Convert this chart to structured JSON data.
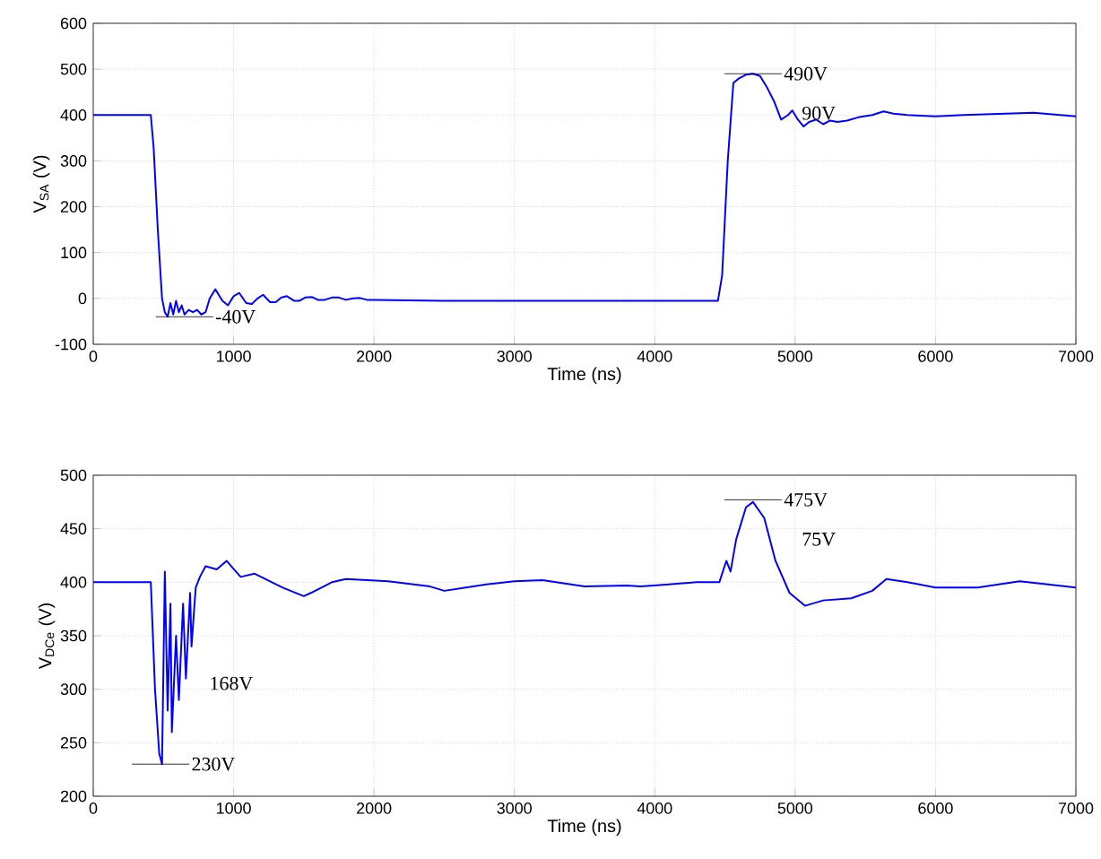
{
  "chart_data": [
    {
      "type": "line",
      "xlabel": "Time (ns)",
      "ylabel": "V$_{SA}$ (V)",
      "xlim": [
        0,
        7000
      ],
      "ylim": [
        -100,
        600
      ],
      "xticks": [
        0,
        1000,
        2000,
        3000,
        4000,
        5000,
        6000,
        7000
      ],
      "yticks": [
        -100,
        0,
        100,
        200,
        300,
        400,
        500,
        600
      ],
      "grid": true,
      "series": [
        {
          "color": "#0000ff",
          "x": [
            0,
            200,
            410,
            430,
            460,
            490,
            510,
            530,
            550,
            570,
            590,
            610,
            630,
            650,
            680,
            710,
            740,
            770,
            800,
            830,
            870,
            920,
            960,
            1000,
            1040,
            1090,
            1130,
            1170,
            1210,
            1260,
            1300,
            1340,
            1380,
            1430,
            1470,
            1510,
            1560,
            1600,
            1650,
            1700,
            1750,
            1800,
            1850,
            1900,
            1950,
            2000,
            2500,
            3000,
            3500,
            4000,
            4450,
            4480,
            4520,
            4560,
            4600,
            4650,
            4700,
            4750,
            4800,
            4850,
            4900,
            4950,
            4980,
            5020,
            5060,
            5100,
            5150,
            5200,
            5250,
            5300,
            5370,
            5450,
            5550,
            5630,
            5700,
            5800,
            6000,
            6200,
            6400,
            6700,
            7000
          ],
          "values": [
            400,
            400,
            400,
            330,
            150,
            0,
            -30,
            -40,
            -10,
            -35,
            -5,
            -30,
            -15,
            -35,
            -25,
            -30,
            -25,
            -35,
            -30,
            0,
            20,
            -5,
            -15,
            5,
            12,
            -10,
            -12,
            0,
            8,
            -8,
            -8,
            2,
            5,
            -5,
            -5,
            2,
            3,
            -3,
            -3,
            2,
            2,
            -3,
            0,
            1,
            -3,
            -3,
            -5,
            -5,
            -5,
            -5,
            -5,
            50,
            300,
            470,
            480,
            488,
            490,
            485,
            460,
            430,
            390,
            400,
            410,
            390,
            375,
            385,
            390,
            380,
            388,
            385,
            388,
            395,
            400,
            408,
            403,
            400,
            397,
            400,
            402,
            405,
            397
          ]
        }
      ],
      "annotations": [
        {
          "text": "-40V",
          "x": 650,
          "y": -40
        },
        {
          "text": "490V",
          "x": 4700,
          "y": 490
        },
        "90V"
      ]
    },
    {
      "type": "line",
      "xlabel": "Time (ns)",
      "ylabel": "V$_{DCe}$ (V)",
      "xlim": [
        0,
        7000
      ],
      "ylim": [
        200,
        500
      ],
      "xticks": [
        0,
        1000,
        2000,
        3000,
        4000,
        5000,
        6000,
        7000
      ],
      "yticks": [
        200,
        250,
        300,
        350,
        400,
        450,
        500
      ],
      "grid": true,
      "series": [
        {
          "color": "#0000ff",
          "x": [
            0,
            200,
            410,
            440,
            470,
            490,
            510,
            530,
            550,
            560,
            590,
            610,
            640,
            660,
            690,
            700,
            730,
            760,
            800,
            880,
            950,
            1050,
            1150,
            1350,
            1500,
            1550,
            1700,
            1800,
            2100,
            2400,
            2500,
            2800,
            3000,
            3200,
            3500,
            3800,
            3900,
            4100,
            4300,
            4460,
            4510,
            4540,
            4580,
            4650,
            4700,
            4780,
            4860,
            4960,
            5070,
            5200,
            5400,
            5550,
            5650,
            5800,
            6000,
            6300,
            6600,
            6800,
            7000
          ],
          "values": [
            400,
            400,
            400,
            300,
            240,
            230,
            410,
            280,
            380,
            260,
            350,
            290,
            380,
            310,
            390,
            340,
            395,
            405,
            415,
            412,
            420,
            405,
            408,
            395,
            387,
            390,
            400,
            403,
            401,
            396,
            392,
            398,
            401,
            402,
            396,
            397,
            396,
            398,
            400,
            400,
            420,
            410,
            440,
            470,
            475,
            460,
            420,
            390,
            378,
            383,
            385,
            392,
            403,
            400,
            395,
            395,
            401,
            398,
            395
          ]
        }
      ],
      "annotations": [
        {
          "text": "230V",
          "x": 480,
          "y": 230
        },
        "168V",
        {
          "text": "475V",
          "x": 4700,
          "y": 477
        },
        "75V"
      ]
    }
  ]
}
